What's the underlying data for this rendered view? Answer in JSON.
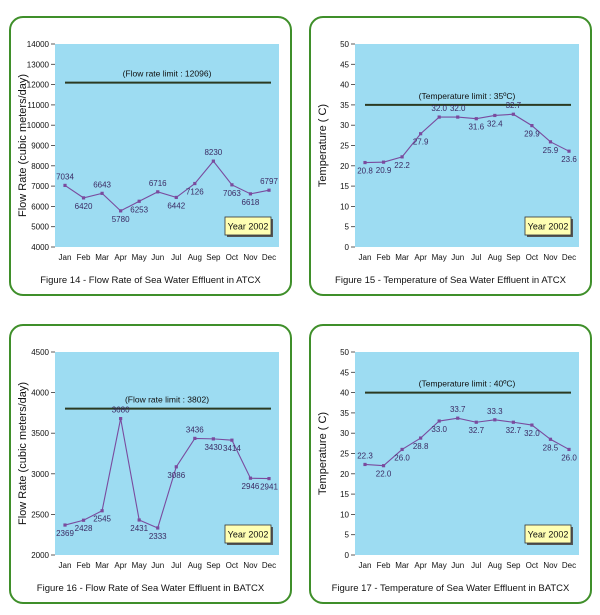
{
  "chart_data": [
    {
      "type": "line",
      "categories": [
        "Jan",
        "Feb",
        "Mar",
        "Apr",
        "May",
        "Jun",
        "Jul",
        "Aug",
        "Sep",
        "Oct",
        "Nov",
        "Dec"
      ],
      "values": [
        7034,
        6420,
        6643,
        5780,
        6253,
        6716,
        6442,
        7126,
        8230,
        7063,
        6618,
        6797
      ],
      "ylabel": "Flow Rate (cubic meters/day)",
      "ylim": [
        4000,
        14000
      ],
      "yticks": [
        4000,
        5000,
        6000,
        7000,
        8000,
        9000,
        10000,
        11000,
        12000,
        13000,
        14000
      ],
      "limit_value": 12096,
      "limit_label": "(Flow rate limit : 12096)",
      "year_label": "Year 2002",
      "caption": "Figure 14 - Flow Rate of Sea Water Effluent in ATCX",
      "value_labels": [
        "7034",
        "6420",
        "6643",
        "5780",
        "6253",
        "6716",
        "6442",
        "7126",
        "8230",
        "7063",
        "6618",
        "6797"
      ],
      "grid": false
    },
    {
      "type": "line",
      "categories": [
        "Jan",
        "Feb",
        "Mar",
        "Apr",
        "May",
        "Jun",
        "Jul",
        "Aug",
        "Sep",
        "Oct",
        "Nov",
        "Dec"
      ],
      "values": [
        20.8,
        20.9,
        22.2,
        27.9,
        32.0,
        32.0,
        31.6,
        32.4,
        32.7,
        29.9,
        25.9,
        23.6
      ],
      "ylabel": "Temperature ( C)",
      "ylim": [
        0,
        50
      ],
      "yticks": [
        0,
        5,
        10,
        15,
        20,
        25,
        30,
        35,
        40,
        45,
        50
      ],
      "limit_value": 35,
      "limit_label": "(Temperature limit : 35ºC)",
      "year_label": "Year 2002",
      "caption": "Figure 15 - Temperature of Sea Water Effluent in ATCX",
      "value_labels": [
        "20.8",
        "20.9",
        "22.2",
        "27.9",
        "32.0",
        "32.0",
        "31.6",
        "32.4",
        "32.7",
        "29.9",
        "25.9",
        "23.6"
      ],
      "grid": false
    },
    {
      "type": "line",
      "categories": [
        "Jan",
        "Feb",
        "Mar",
        "Apr",
        "May",
        "Jun",
        "Jul",
        "Aug",
        "Sep",
        "Oct",
        "Nov",
        "Dec"
      ],
      "values": [
        2369,
        2428,
        2545,
        3680,
        2431,
        2333,
        3086,
        3436,
        3430,
        3414,
        2946,
        2941
      ],
      "ylabel": "Flow Rate (cubic meters/day)",
      "ylim": [
        2000,
        4500
      ],
      "yticks": [
        2000,
        2500,
        3000,
        3500,
        4000,
        4500
      ],
      "limit_value": 3802,
      "limit_label": "(Flow rate limit : 3802)",
      "year_label": "Year 2002",
      "caption": "Figure 16 - Flow Rate of Sea Water Effluent in BATCX",
      "value_labels": [
        "2369",
        "2428",
        "2545",
        "3680",
        "2431",
        "2333",
        "3086",
        "3436",
        "3430",
        "3414",
        "2946",
        "2941"
      ],
      "grid": false
    },
    {
      "type": "line",
      "categories": [
        "Jan",
        "Feb",
        "Mar",
        "Apr",
        "May",
        "Jun",
        "Jul",
        "Aug",
        "Sep",
        "Oct",
        "Nov",
        "Dec"
      ],
      "values": [
        22.3,
        22.0,
        26.0,
        28.8,
        33.0,
        33.7,
        32.7,
        33.3,
        32.7,
        32.0,
        28.5,
        26.0
      ],
      "ylabel": "Temperature ( C)",
      "ylim": [
        0,
        50
      ],
      "yticks": [
        0,
        5,
        10,
        15,
        20,
        25,
        30,
        35,
        40,
        45,
        50
      ],
      "limit_value": 40,
      "limit_label": "(Temperature limit : 40ºC)",
      "year_label": "Year 2002",
      "caption": "Figure 17 - Temperature of Sea Water Effluent in BATCX",
      "value_labels": [
        "22.3",
        "22.0",
        "26.0",
        "28.8",
        "33.0",
        "33.7",
        "32.7",
        "33.3",
        "32.7",
        "32.0",
        "28.5",
        "26.0"
      ],
      "grid": false
    }
  ],
  "colors": {
    "plot_background": "#9ddcf2",
    "series_line": "#7a4b9e",
    "limit_line": "#2b3a22",
    "panel_border": "#3f8f2a",
    "year_box_fill": "#ffffb3",
    "value_label": "#3b2a63"
  }
}
